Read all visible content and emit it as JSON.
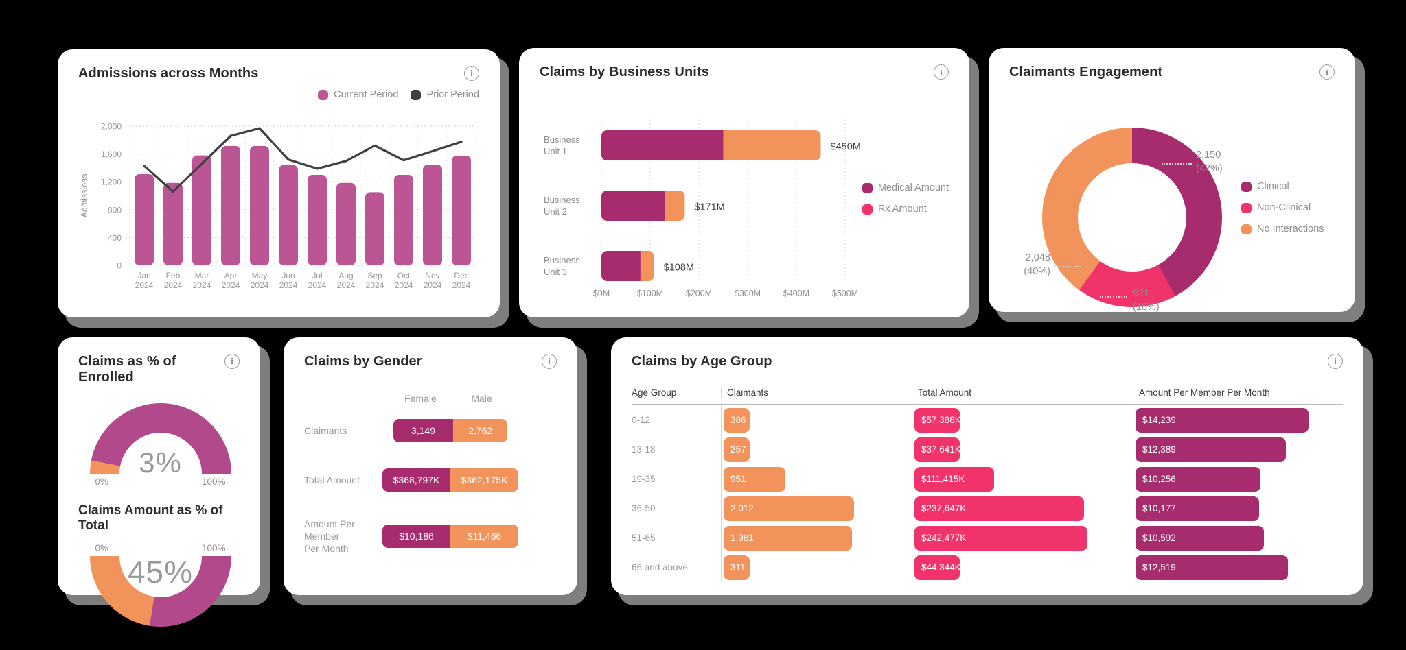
{
  "icons": {
    "info": "i"
  },
  "colors": {
    "page_background": "#000000",
    "card_background": "#FFFFFF",
    "card_shadow": "#7E7E7E",
    "title_text": "#2B2B2B",
    "muted_text": "#8E8E8E",
    "magenta_deep": "#A62C6E",
    "rose_bar": "#BC5594",
    "orange": "#F2935C",
    "pink": "#F0336B",
    "gauge_magenta": "#B2498A",
    "dark_line": "#3F3F3F"
  },
  "chart_data": [
    {
      "id": "admissions",
      "type": "bar",
      "title": "Admissions across Months",
      "ylabel": "Admissions",
      "ylim": [
        0,
        2000
      ],
      "yticks": [
        "0",
        "400",
        "800",
        "1,200",
        "1,600",
        "2,000"
      ],
      "categories": [
        "Jan",
        "Feb",
        "Mar",
        "Apr",
        "May",
        "Jun",
        "Jul",
        "Aug",
        "Sep",
        "Oct",
        "Nov",
        "Dec"
      ],
      "year_label": "2024",
      "grid": true,
      "legend_position": "top-right",
      "series": [
        {
          "name": "Current Period",
          "type": "bar",
          "color": "#BC5594",
          "values": [
            1310,
            1185,
            1580,
            1715,
            1715,
            1440,
            1300,
            1185,
            1050,
            1300,
            1445,
            1575
          ]
        },
        {
          "name": "Prior Period",
          "type": "line",
          "color": "#3F3F3F",
          "values": [
            1430,
            1060,
            1460,
            1860,
            1970,
            1520,
            1390,
            1500,
            1720,
            1510,
            1640,
            1775
          ]
        }
      ]
    },
    {
      "id": "business_units",
      "type": "bar",
      "orientation": "horizontal",
      "title": "Claims by Business Units",
      "categories": [
        "Business Unit 1",
        "Business Unit 2",
        "Business Unit 3"
      ],
      "category_lines": [
        [
          "Business",
          "Unit 1"
        ],
        [
          "Business",
          "Unit 2"
        ],
        [
          "Business",
          "Unit 3"
        ]
      ],
      "xlim": [
        0,
        500
      ],
      "xticks": [
        "$0M",
        "$100M",
        "$200M",
        "$300M",
        "$400M",
        "$500M"
      ],
      "series": [
        {
          "name": "Medical Amount",
          "color": "#A62C6E",
          "legend_color": "#A62C6E",
          "values": [
            250,
            130,
            80
          ]
        },
        {
          "name": "Rx Amount",
          "color": "#F2935C",
          "legend_color": "#F0336B",
          "values": [
            200,
            41,
            28
          ]
        }
      ],
      "total_labels": [
        "$450M",
        "$171M",
        "$108M"
      ]
    },
    {
      "id": "claimants_engagement",
      "type": "pie",
      "title": "Claimants Engagement",
      "slices": [
        {
          "label": "Clinical",
          "value": 2150,
          "pct": 42,
          "display": "2,150",
          "pct_display": "(42%)",
          "color": "#A62C6E"
        },
        {
          "label": "Non-Clinical",
          "value": 921,
          "pct": 18,
          "display": "921",
          "pct_display": "(18%)",
          "color": "#F0336B"
        },
        {
          "label": "No Interactions",
          "value": 2048,
          "pct": 40,
          "display": "2,048",
          "pct_display": "(40%)",
          "color": "#F2935C"
        }
      ]
    },
    {
      "id": "enrollment_gauges",
      "type": "gauge",
      "gauges": [
        {
          "label": "Claims as % of Enrolled",
          "pct": 3,
          "value_display": "3%",
          "min_label": "0%",
          "max_label": "100%",
          "orientation": "top",
          "value_color": "#F2935C",
          "track_color": "#B2498A"
        },
        {
          "label": "Claims Amount as % of Total",
          "pct": 45,
          "value_display": "45%",
          "min_label": "0%",
          "max_label": "100%",
          "orientation": "bottom",
          "value_color": "#F2935C",
          "track_color": "#B2498A"
        }
      ]
    },
    {
      "id": "claims_by_gender",
      "type": "bar",
      "orientation": "horizontal-stacked",
      "title": "Claims by Gender",
      "columns": [
        "Female",
        "Male"
      ],
      "colors": {
        "female": "#A62C6E",
        "male": "#F2935C"
      },
      "rows": [
        {
          "label": "Claimants",
          "label_lines": [
            "Claimants"
          ],
          "female": "3,149",
          "male": "2,762",
          "female_pct": 52.5,
          "width_pct": 84
        },
        {
          "label": "Total Amount",
          "label_lines": [
            "Total Amount"
          ],
          "female": "$368,797K",
          "male": "$362,175K",
          "female_pct": 50,
          "width_pct": 100
        },
        {
          "label": "Amount Per Member Per Month",
          "label_lines": [
            "Amount Per Member",
            "Per Month"
          ],
          "female": "$10,186",
          "male": "$11,466",
          "female_pct": 50,
          "width_pct": 100
        }
      ]
    },
    {
      "id": "claims_by_age_group",
      "type": "bar",
      "orientation": "horizontal",
      "title": "Claims by Age Group",
      "columns": [
        "Age Group",
        "Claimants",
        "Total Amount",
        "Amount Per Member Per Month"
      ],
      "bar_colors": {
        "claimants": "#F2935C",
        "total": "#F0336B",
        "apmpm": "#A62C6E"
      },
      "max_values": {
        "claimants": 2012,
        "total": 242477,
        "apmpm": 14239
      },
      "rows": [
        {
          "age": "0-12",
          "claimants": 386,
          "claimants_display": "386",
          "total": 57388,
          "total_display": "$57,388K",
          "apmpm": 14239,
          "apmpm_display": "$14,239"
        },
        {
          "age": "13-18",
          "claimants": 257,
          "claimants_display": "257",
          "total": 37641,
          "total_display": "$37,641K",
          "apmpm": 12389,
          "apmpm_display": "$12,389"
        },
        {
          "age": "19-35",
          "claimants": 951,
          "claimants_display": "951",
          "total": 111415,
          "total_display": "$111,415K",
          "apmpm": 10256,
          "apmpm_display": "$10,256"
        },
        {
          "age": "36-50",
          "claimants": 2012,
          "claimants_display": "2,012",
          "total": 237647,
          "total_display": "$237,647K",
          "apmpm": 10177,
          "apmpm_display": "$10,177"
        },
        {
          "age": "51-65",
          "claimants": 1981,
          "claimants_display": "1,981",
          "total": 242477,
          "total_display": "$242,477K",
          "apmpm": 10592,
          "apmpm_display": "$10,592"
        },
        {
          "age": "66 and above",
          "claimants": 311,
          "claimants_display": "311",
          "total": 44344,
          "total_display": "$44,344K",
          "apmpm": 12519,
          "apmpm_display": "$12,519"
        }
      ]
    }
  ]
}
